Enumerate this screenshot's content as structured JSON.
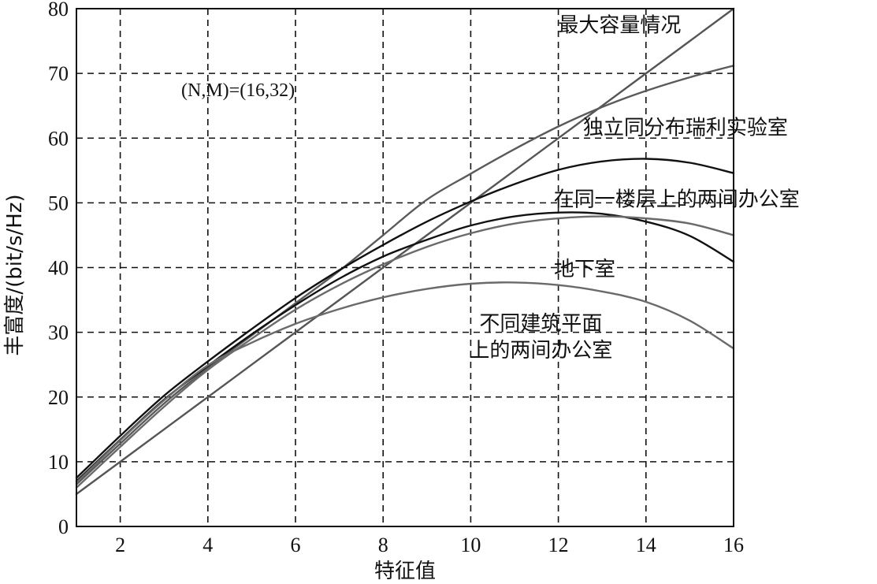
{
  "chart_data": {
    "type": "line",
    "title": "",
    "xlabel": "特征值",
    "ylabel": "丰富度/(bit/s/Hz)",
    "xlim": [
      1,
      16
    ],
    "ylim": [
      0,
      80
    ],
    "x_ticks": [
      2,
      4,
      6,
      8,
      10,
      12,
      14,
      16
    ],
    "x_tick_labels": [
      "2",
      "4",
      "6",
      "8",
      "10",
      "12",
      "14",
      "16"
    ],
    "y_ticks": [
      0,
      10,
      20,
      30,
      40,
      50,
      60,
      70,
      80
    ],
    "y_tick_labels": [
      "0",
      "10",
      "20",
      "30",
      "40",
      "50",
      "60",
      "70",
      "80"
    ],
    "grid": true,
    "parameter_label": "(N,M)=(16,32)",
    "x": [
      1,
      2,
      3,
      4,
      5,
      6,
      7,
      8,
      9,
      10,
      11,
      12,
      13,
      14,
      15,
      16
    ],
    "series": [
      {
        "name": "最大容量情况",
        "color": "#555555",
        "values": [
          5,
          10,
          15,
          20,
          25,
          30,
          35,
          40,
          45,
          50,
          55,
          60,
          65,
          70,
          75,
          80
        ]
      },
      {
        "name": "独立同分布瑞利实验室",
        "color": "#5a5a5a",
        "values": [
          6.5,
          12.8,
          19,
          24.5,
          29.5,
          34.5,
          39.5,
          45,
          50.5,
          54.5,
          58.3,
          61.8,
          64.8,
          67.3,
          69.4,
          71.2
        ]
      },
      {
        "name": "在同一楼层上的两间办公室",
        "color": "#111111",
        "values": [
          7.5,
          14,
          20.2,
          25.5,
          30.5,
          35.3,
          39.6,
          43.5,
          47.1,
          50.2,
          52.9,
          55.1,
          56.4,
          56.8,
          56.2,
          54.6
        ]
      },
      {
        "name": "地下室",
        "color": "#111111",
        "values": [
          7,
          13.4,
          19.6,
          24.8,
          29.7,
          34.2,
          38.3,
          41.7,
          44.3,
          46.5,
          47.9,
          48.5,
          48.3,
          47.1,
          44.9,
          40.9
        ]
      },
      {
        "name": "",
        "color": "#6a6a6a",
        "values": [
          6,
          12.3,
          18.5,
          24.2,
          29,
          33.5,
          37.3,
          40.5,
          43.2,
          45.3,
          46.8,
          47.6,
          47.9,
          47.6,
          46.8,
          45
        ]
      },
      {
        "name": "不同建筑平面上的两间办公室",
        "color": "#6a6a6a",
        "values": [
          6.8,
          13.3,
          19.5,
          24.9,
          28.4,
          31.3,
          33.6,
          35.4,
          36.7,
          37.5,
          37.7,
          37.3,
          36.3,
          34.7,
          31.8,
          27.5
        ]
      }
    ],
    "annotations": [
      {
        "text": "最大容量情况",
        "x": 13.4,
        "y": 77.5,
        "series": 0
      },
      {
        "text": "独立同分布瑞利实验室",
        "x": 14.9,
        "y": 61.7,
        "series": 1
      },
      {
        "text": "在同一楼层上的两间办公室",
        "x": 14.7,
        "y": 50.6,
        "series": 2
      },
      {
        "text": "地下室",
        "x": 12.6,
        "y": 39.8,
        "series": 3
      },
      {
        "text": "不同建筑平面",
        "x": 11.6,
        "y": 31.4,
        "series": 5
      },
      {
        "text": "上的两间办公室",
        "x": 11.6,
        "y": 27.3,
        "series": 5
      }
    ]
  }
}
